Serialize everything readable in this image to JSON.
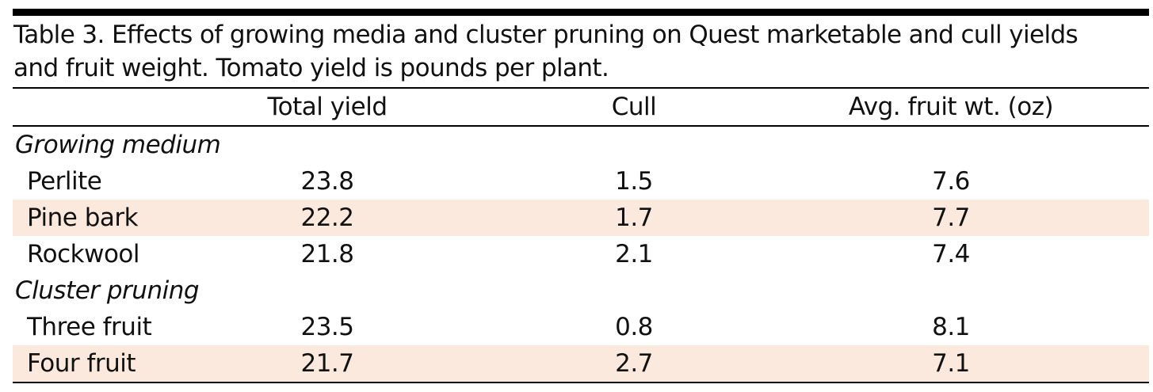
{
  "caption": [
    "Table 3. Effects of growing media and cluster pruning on Quest marketable and cull yields",
    "and fruit weight. Tomato yield is pounds per plant."
  ],
  "table": {
    "header": [
      "Total yield",
      "Cull",
      "Avg. fruit wt. (oz)"
    ],
    "sections": [
      {
        "title": "Growing medium",
        "rows": [
          [
            "Perlite",
            "23.8",
            "1.5",
            "7.6"
          ],
          [
            "Pine bark",
            "22.2",
            "1.7",
            "7.7"
          ],
          [
            "Rockwool",
            "21.8",
            "2.1",
            "7.4"
          ]
        ]
      },
      {
        "title": "Cluster pruning",
        "rows": [
          [
            "Three fruit",
            "23.5",
            "0.8",
            "8.1"
          ],
          [
            "Four fruit",
            "21.7",
            "2.7",
            "7.1"
          ]
        ]
      }
    ]
  }
}
